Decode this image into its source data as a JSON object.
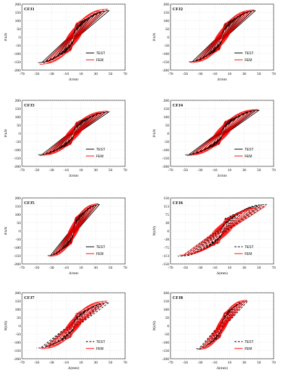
{
  "chart_data": [
    {
      "type": "line",
      "tag": "CFJ1",
      "ylabel": "P/kN",
      "xlabel": "Δ/mm",
      "xlim": [
        -70,
        70
      ],
      "ylim": [
        -200,
        200
      ],
      "xticks": [
        -70,
        -50,
        -30,
        -10,
        10,
        30,
        50,
        70
      ],
      "yticks": [
        200,
        150,
        100,
        50,
        0,
        -50,
        -100,
        -150,
        -200
      ],
      "test_curve": {
        "xmax": 48,
        "ymax": 160,
        "xmin": -48,
        "ymin": -155,
        "loops": 9
      },
      "fem_curve": {
        "xmax": 46,
        "ymax": 170,
        "xmin": -46,
        "ymin": -165
      },
      "series": [
        {
          "name": "TEST",
          "color": "#000000",
          "dash": ""
        },
        {
          "name": "FEM",
          "color": "#ff0000",
          "dash": ""
        }
      ]
    },
    {
      "type": "line",
      "tag": "CFJ2",
      "ylabel": "P/kN",
      "xlabel": "Δ/mm",
      "xlim": [
        -70,
        70
      ],
      "ylim": [
        -200,
        200
      ],
      "xticks": [
        -70,
        -50,
        -30,
        -10,
        10,
        30,
        50,
        70
      ],
      "yticks": [
        200,
        150,
        100,
        50,
        0,
        -50,
        -100,
        -150,
        -200
      ],
      "test_curve": {
        "xmax": 45,
        "ymax": 160,
        "xmin": -45,
        "ymin": -150,
        "loops": 9
      },
      "fem_curve": {
        "xmax": 43,
        "ymax": 165,
        "xmin": -43,
        "ymin": -155
      },
      "series": [
        {
          "name": "TEST",
          "color": "#000000",
          "dash": ""
        },
        {
          "name": "FEM",
          "color": "#ff0000",
          "dash": ""
        }
      ]
    },
    {
      "type": "line",
      "tag": "CFJ3",
      "ylabel": "P/kN",
      "xlabel": "Δ/mm",
      "xlim": [
        -70,
        70
      ],
      "ylim": [
        -200,
        200
      ],
      "xticks": [
        -70,
        -50,
        -30,
        -10,
        10,
        30,
        50,
        70
      ],
      "yticks": [
        200,
        150,
        100,
        50,
        0,
        -50,
        -100,
        -150,
        -200
      ],
      "test_curve": {
        "xmax": 48,
        "ymax": 130,
        "xmin": -48,
        "ymin": -130,
        "loops": 9
      },
      "fem_curve": {
        "xmax": 46,
        "ymax": 135,
        "xmin": -46,
        "ymin": -135
      },
      "series": [
        {
          "name": "TEST",
          "color": "#000000",
          "dash": ""
        },
        {
          "name": "FEM",
          "color": "#ff0000",
          "dash": ""
        }
      ]
    },
    {
      "type": "line",
      "tag": "CFJ4",
      "ylabel": "P/kN",
      "xlabel": "Δ/mm",
      "xlim": [
        -70,
        70
      ],
      "ylim": [
        -200,
        200
      ],
      "xticks": [
        -70,
        -50,
        -30,
        -10,
        10,
        30,
        50,
        70
      ],
      "yticks": [
        200,
        150,
        100,
        50,
        0,
        -50,
        -100,
        -150,
        -200
      ],
      "test_curve": {
        "xmax": 50,
        "ymax": 140,
        "xmin": -50,
        "ymin": -130,
        "loops": 10
      },
      "fem_curve": {
        "xmax": 48,
        "ymax": 145,
        "xmin": -48,
        "ymin": -135
      },
      "series": [
        {
          "name": "TEST",
          "color": "#000000",
          "dash": ""
        },
        {
          "name": "FEM",
          "color": "#ff0000",
          "dash": ""
        }
      ]
    },
    {
      "type": "line",
      "tag": "CFJ5",
      "ylabel": "P/kN",
      "xlabel": "Δ/mm",
      "xlim": [
        -70,
        70
      ],
      "ylim": [
        -200,
        200
      ],
      "xticks": [
        -70,
        -50,
        -30,
        -10,
        10,
        30,
        50,
        70
      ],
      "yticks": [
        200,
        150,
        100,
        50,
        0,
        -50,
        -100,
        -150,
        -200
      ],
      "test_curve": {
        "xmax": 35,
        "ymax": 160,
        "xmin": -35,
        "ymin": -150,
        "loops": 9
      },
      "fem_curve": {
        "xmax": 33,
        "ymax": 165,
        "xmin": -33,
        "ymin": -155
      },
      "series": [
        {
          "name": "TEST",
          "color": "#000000",
          "dash": ""
        },
        {
          "name": "FEM",
          "color": "#ff0000",
          "dash": ""
        }
      ]
    },
    {
      "type": "line",
      "tag": "CFJ6",
      "ylabel": "P(kN)",
      "xlabel": "Δ(mm)",
      "xlim": [
        -70,
        70
      ],
      "ylim": [
        -150,
        150
      ],
      "xticks": [
        -70,
        -50,
        -30,
        -10,
        10,
        30,
        50,
        70
      ],
      "yticks": [
        150,
        113,
        75,
        38,
        0,
        -38,
        -75,
        -113,
        -150
      ],
      "test_curve": {
        "xmax": 60,
        "ymax": 120,
        "xmin": -60,
        "ymin": -115,
        "loops": 10
      },
      "fem_curve": {
        "xmax": 58,
        "ymax": 110,
        "xmin": -58,
        "ymin": -110
      },
      "series": [
        {
          "name": "TEST",
          "color": "#000000",
          "dash": "3,2"
        },
        {
          "name": "FEM",
          "color": "#ff0000",
          "dash": ""
        }
      ]
    },
    {
      "type": "line",
      "tag": "CFJ7",
      "ylabel": "P(kN)",
      "xlabel": "Δ(mm)",
      "xlim": [
        -70,
        70
      ],
      "ylim": [
        -200,
        200
      ],
      "xticks": [
        -70,
        -50,
        -30,
        -10,
        10,
        30,
        50,
        70
      ],
      "yticks": [
        200,
        150,
        100,
        50,
        0,
        -50,
        -100,
        -150,
        -200
      ],
      "test_curve": {
        "xmax": 48,
        "ymax": 140,
        "xmin": -50,
        "ymin": -135,
        "loops": 9
      },
      "fem_curve": {
        "xmax": 45,
        "ymax": 150,
        "xmin": -45,
        "ymin": -140
      },
      "series": [
        {
          "name": "TEST",
          "color": "#000000",
          "dash": "3,2"
        },
        {
          "name": "FEM",
          "color": "#ff0000",
          "dash": ""
        }
      ]
    },
    {
      "type": "line",
      "tag": "CFJ8",
      "ylabel": "P(kN)",
      "xlabel": "Δ(mm)",
      "xlim": [
        -70,
        70
      ],
      "ylim": [
        -200,
        200
      ],
      "xticks": [
        -70,
        -50,
        -30,
        -10,
        10,
        30,
        50,
        70
      ],
      "yticks": [
        200,
        150,
        100,
        50,
        0,
        -50,
        -100,
        -150,
        -200
      ],
      "test_curve": {
        "xmax": 35,
        "ymax": 150,
        "xmin": -35,
        "ymin": -140,
        "loops": 9
      },
      "fem_curve": {
        "xmax": 33,
        "ymax": 155,
        "xmin": -33,
        "ymin": -145
      },
      "series": [
        {
          "name": "TEST",
          "color": "#000000",
          "dash": "3,2"
        },
        {
          "name": "FEM",
          "color": "#ff0000",
          "dash": ""
        }
      ]
    }
  ]
}
